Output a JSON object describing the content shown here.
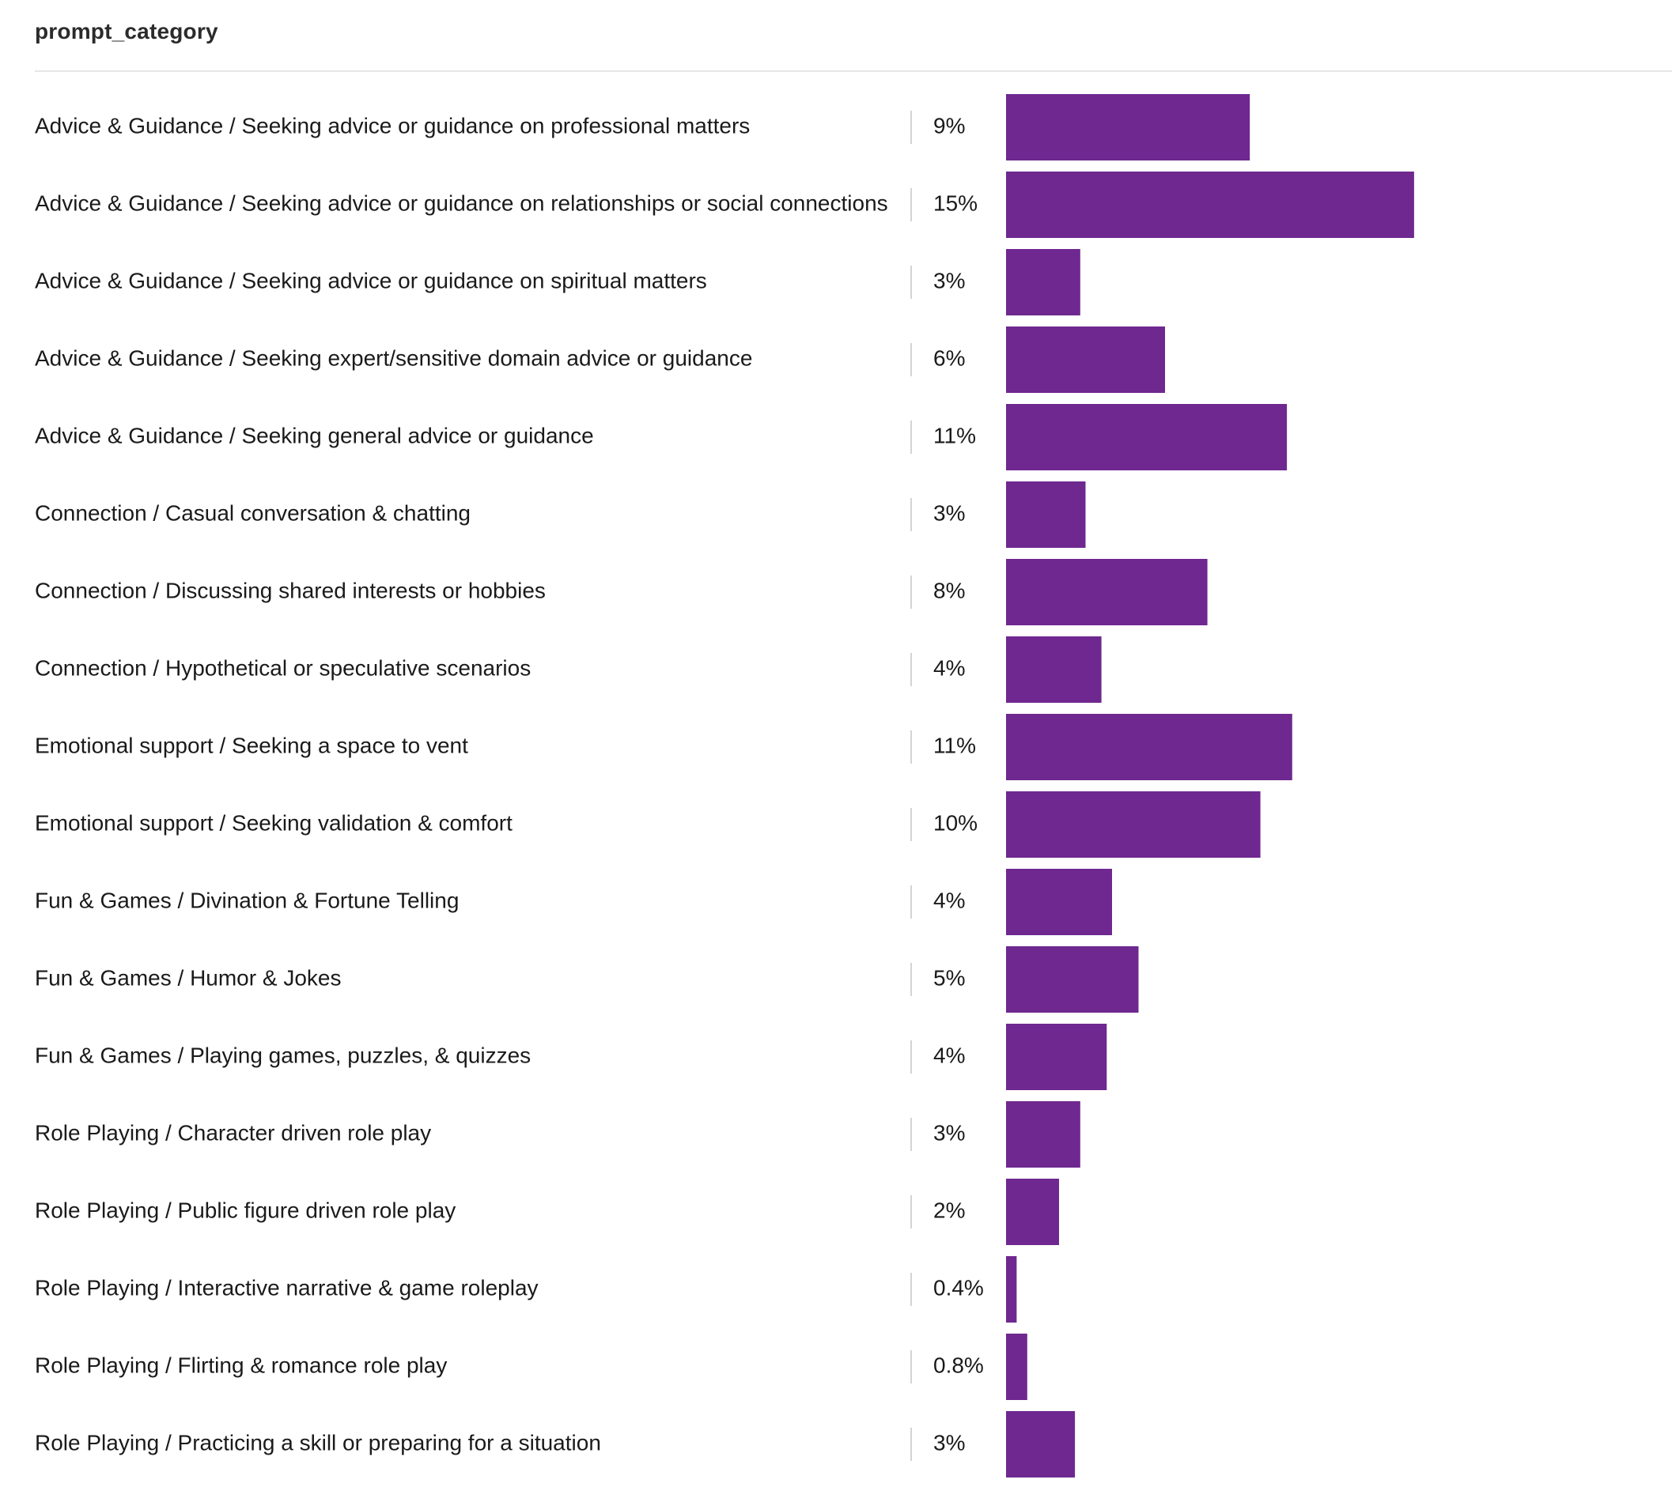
{
  "section": {
    "title": "prompt_category"
  },
  "colors": {
    "bar": "#6e288f",
    "separator": "#d4d4d4",
    "rule": "#e6e6e6"
  },
  "chart_data": {
    "type": "bar",
    "orientation": "horizontal",
    "title": "prompt_category",
    "grid": false,
    "legend": "none",
    "categories": [
      "Advice & Guidance / Seeking advice or guidance on professional matters",
      "Advice & Guidance / Seeking advice or guidance on relationships or social connections",
      "Advice & Guidance / Seeking advice or guidance on spiritual matters",
      "Advice & Guidance / Seeking expert/sensitive domain advice or guidance",
      "Advice & Guidance / Seeking general advice or guidance",
      "Connection / Casual conversation & chatting",
      "Connection / Discussing shared interests or hobbies",
      "Connection / Hypothetical or speculative scenarios",
      "Emotional support / Seeking a space to vent",
      "Emotional support / Seeking validation & comfort",
      "Fun & Games / Divination & Fortune Telling",
      "Fun & Games / Humor & Jokes",
      "Fun & Games / Playing games, puzzles, & quizzes",
      "Role Playing / Character driven role play",
      "Role Playing / Public figure driven role play",
      "Role Playing / Interactive narrative & game roleplay",
      "Role Playing / Flirting & romance role play",
      "Role Playing / Practicing a skill or preparing for a situation"
    ],
    "values": [
      9.2,
      15.4,
      2.8,
      6.0,
      10.6,
      3.0,
      7.6,
      3.6,
      10.8,
      9.6,
      4.0,
      5.0,
      3.8,
      2.8,
      2.0,
      0.4,
      0.8,
      2.6
    ],
    "value_labels": [
      "9%",
      "15%",
      "3%",
      "6%",
      "11%",
      "3%",
      "8%",
      "4%",
      "11%",
      "10%",
      "4%",
      "5%",
      "4%",
      "3%",
      "2%",
      "0.4%",
      "0.8%",
      "3%"
    ],
    "unit": "%"
  }
}
